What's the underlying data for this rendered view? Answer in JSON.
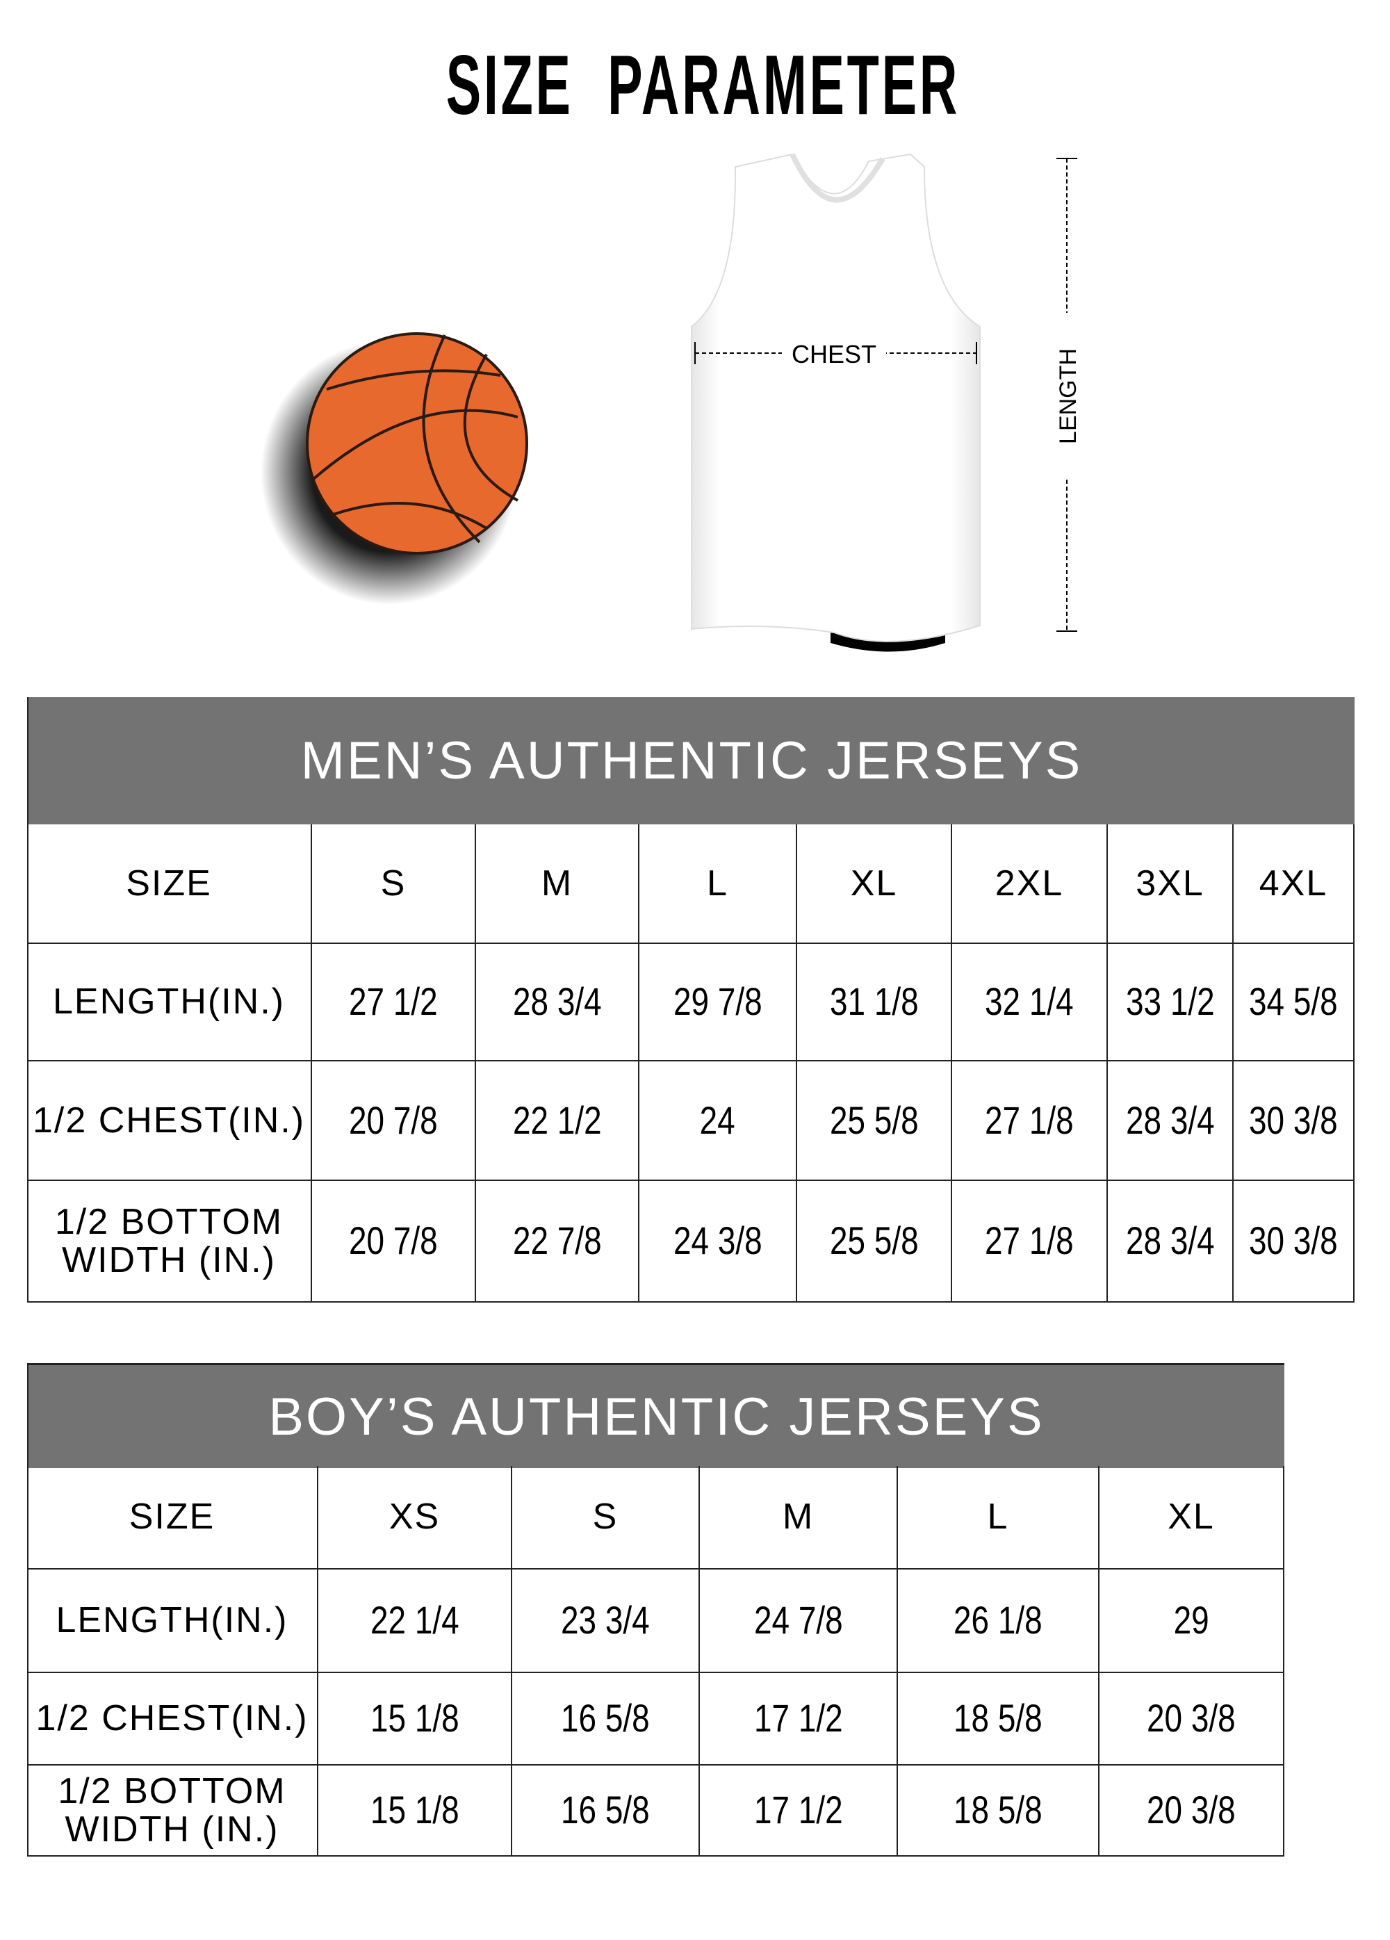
{
  "title": "SIZE  PARAMETER",
  "illustration": {
    "chest_label": "CHEST",
    "length_label": "LENGTH",
    "ball_color": "#E8692E",
    "header_color": "#737373"
  },
  "mens": {
    "title": "MEN’S AUTHENTIC JERSEYS",
    "columns": [
      "SIZE",
      "S",
      "M",
      "L",
      "XL",
      "2XL",
      "3XL",
      "4XL"
    ],
    "rows": [
      {
        "label": "LENGTH(IN.)",
        "values": [
          "27  1/2",
          "28  3/4",
          "29  7/8",
          "31  1/8",
          "32  1/4",
          "33  1/2",
          "34  5/8"
        ]
      },
      {
        "label": "1/2 CHEST(IN.)",
        "values": [
          "20  7/8",
          "22  1/2",
          "24",
          "25  5/8",
          "27  1/8",
          "28  3/4",
          "30  3/8"
        ]
      },
      {
        "label": "1/2 BOTTOM\nWIDTH  (IN.)",
        "values": [
          "20  7/8",
          "22  7/8",
          "24  3/8",
          "25  5/8",
          "27  1/8",
          "28  3/4",
          "30  3/8"
        ]
      }
    ]
  },
  "boys": {
    "title": "BOY’S AUTHENTIC JERSEYS",
    "columns": [
      "SIZE",
      "XS",
      "S",
      "M",
      "L",
      "XL"
    ],
    "rows": [
      {
        "label": "LENGTH(IN.)",
        "values": [
          "22  1/4",
          "23  3/4",
          "24  7/8",
          "26  1/8",
          "29"
        ]
      },
      {
        "label": "1/2 CHEST(IN.)",
        "values": [
          "15  1/8",
          "16  5/8",
          "17  1/2",
          "18  5/8",
          "20  3/8"
        ]
      },
      {
        "label": "1/2 BOTTOM\nWIDTH  (IN.)",
        "values": [
          "15  1/8",
          "16  5/8",
          "17  1/2",
          "18  5/8",
          "20  3/8"
        ]
      }
    ]
  }
}
